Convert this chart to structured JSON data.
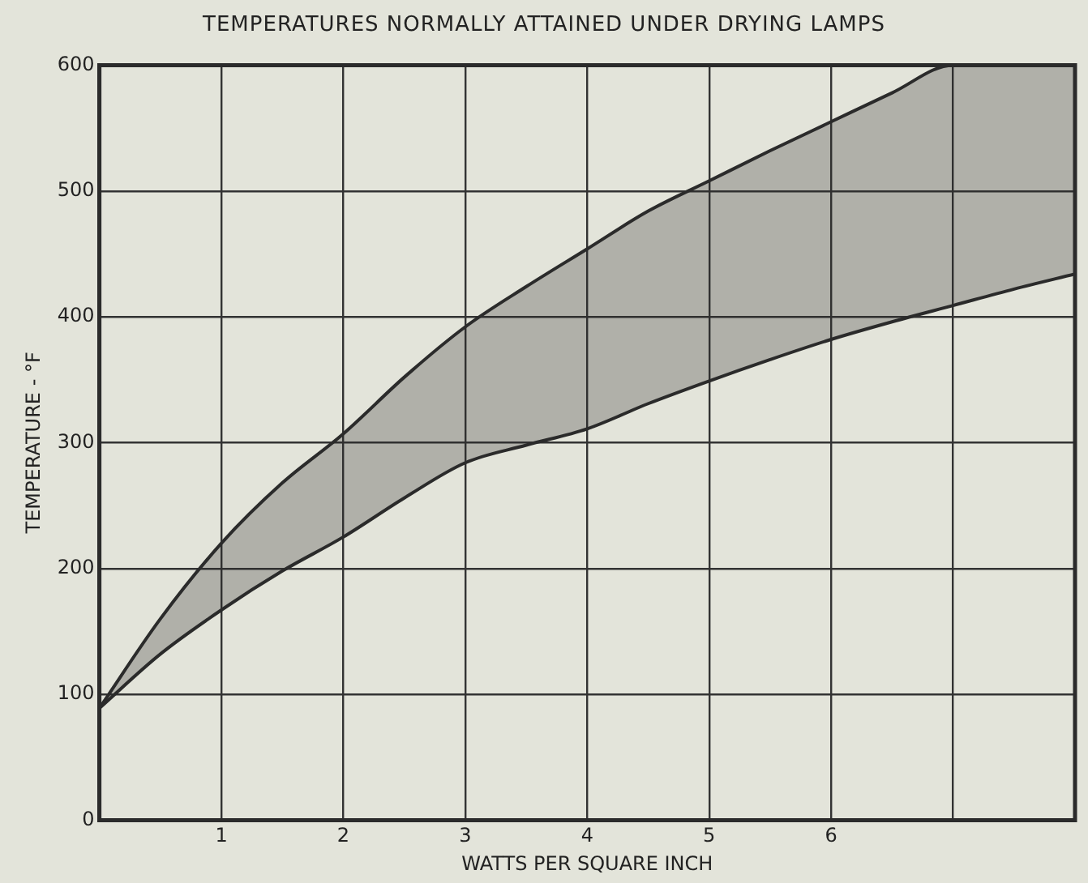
{
  "chart_data": {
    "type": "line",
    "title": "TEMPERATURES NORMALLY ATTAINED UNDER DRYING LAMPS",
    "xlabel": "WATTS PER SQUARE INCH",
    "ylabel": "TEMPERATURE - °F",
    "x": [
      0,
      0.5,
      1,
      1.5,
      2,
      2.5,
      3,
      3.5,
      4,
      4.5,
      5,
      5.5,
      6,
      6.5,
      7,
      7.5,
      8
    ],
    "series": [
      {
        "type": "area",
        "color": "#2b2b2b",
        "values": [
          89,
          160,
          220,
          268,
          307,
          352,
          392,
          424,
          454,
          484,
          508,
          532,
          555,
          578,
          600,
          600,
          600
        ]
      },
      {
        "type": "line",
        "color": "#2b2b2b",
        "values": [
          89,
          132,
          167,
          198,
          225,
          256,
          284,
          298,
          311,
          331,
          349,
          366,
          382,
          396,
          409,
          422,
          434
        ]
      }
    ],
    "xlim": [
      0,
      8
    ],
    "xticks": [
      {
        "value": 0,
        "label": null
      },
      1,
      2,
      3,
      4,
      5,
      6,
      {
        "value": 7,
        "label": null
      },
      {
        "value": 8,
        "label": null
      }
    ],
    "ylim": [
      0,
      600
    ],
    "yticks": [
      0,
      100,
      200,
      300,
      400,
      500,
      600
    ],
    "grid": true,
    "legend": false,
    "marker": "none",
    "line_style": "solid"
  }
}
